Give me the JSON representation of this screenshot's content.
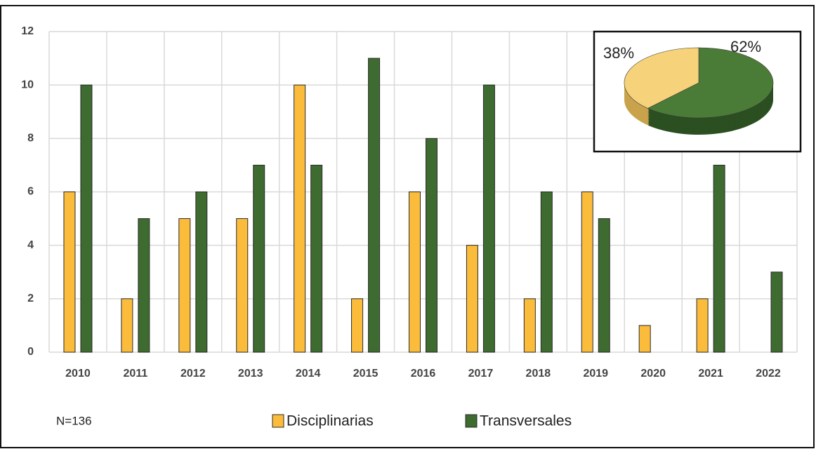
{
  "chart_data": [
    {
      "type": "bar",
      "categories": [
        "2010",
        "2011",
        "2012",
        "2013",
        "2014",
        "2015",
        "2016",
        "2017",
        "2018",
        "2019",
        "2020",
        "2021",
        "2022"
      ],
      "series": [
        {
          "name": "Disciplinarias",
          "color": "#fbbc3c",
          "values": [
            6,
            2,
            5,
            5,
            10,
            2,
            6,
            4,
            2,
            6,
            1,
            2,
            0
          ]
        },
        {
          "name": "Transversales",
          "color": "#3e6b2f",
          "values": [
            10,
            5,
            6,
            7,
            7,
            11,
            8,
            10,
            6,
            5,
            0,
            7,
            3
          ]
        }
      ],
      "ylim": [
        0,
        12
      ],
      "yticks": [
        0,
        2,
        4,
        6,
        8,
        10,
        12
      ],
      "grid": true,
      "annotation": "N=136",
      "legend": "bottom"
    },
    {
      "type": "pie",
      "values": [
        38,
        62
      ],
      "value_labels": [
        "38%",
        "62%"
      ],
      "colors": [
        "#f6d27a",
        "#4b7c37"
      ]
    }
  ]
}
